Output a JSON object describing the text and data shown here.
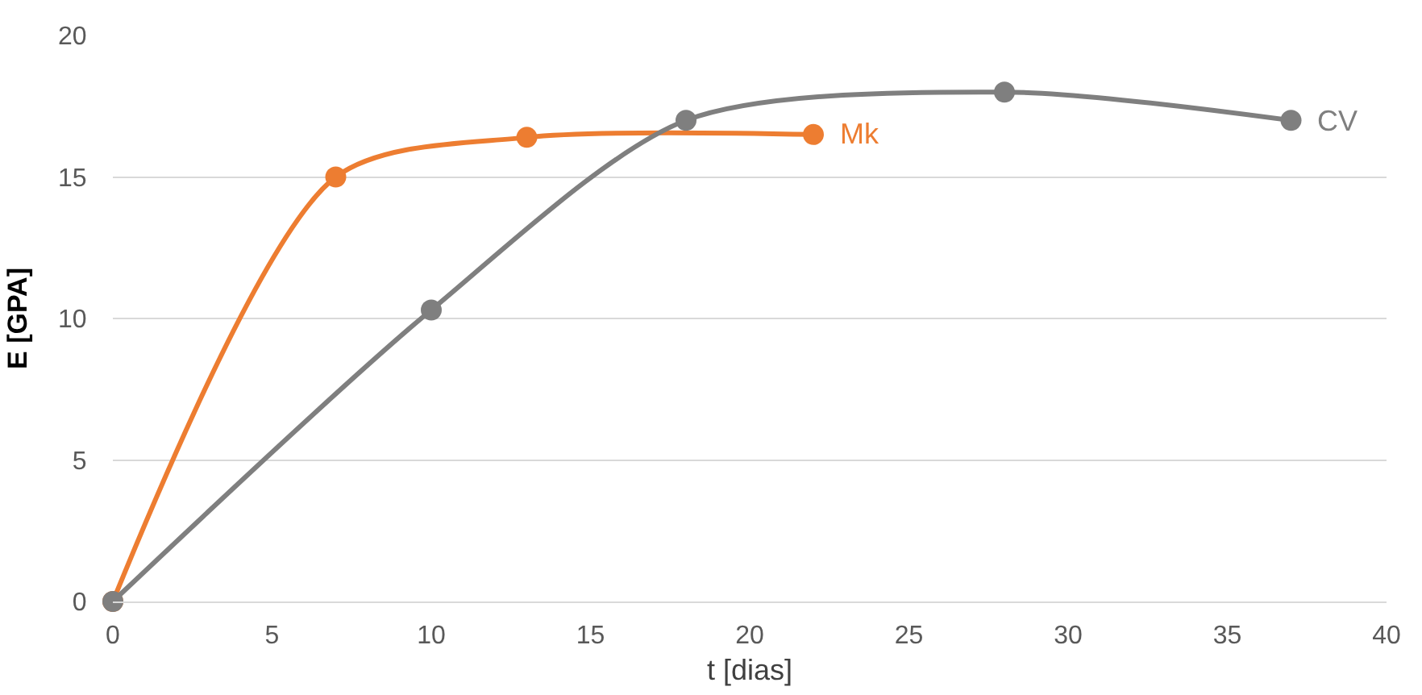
{
  "chart_data": {
    "type": "line",
    "xlabel": "t [dias]",
    "ylabel": "E [GPA]",
    "xlim": [
      0,
      40
    ],
    "xticks": [
      0,
      5,
      10,
      15,
      20,
      25,
      30,
      35,
      40
    ],
    "ylim": [
      0,
      20
    ],
    "yticks": [
      0,
      5,
      10,
      15,
      20
    ],
    "grid": "y",
    "legend": false,
    "marker": "circle",
    "line_style": "solid",
    "series": [
      {
        "name": "Mk",
        "color": "#ed7d31",
        "x": [
          0,
          7,
          13,
          22
        ],
        "values": [
          0,
          15,
          16.4,
          16.5
        ]
      },
      {
        "name": "CV",
        "color": "#7f7f7f",
        "x": [
          0,
          10,
          18,
          28,
          37
        ],
        "values": [
          0,
          10.3,
          17,
          18,
          17
        ]
      }
    ]
  }
}
